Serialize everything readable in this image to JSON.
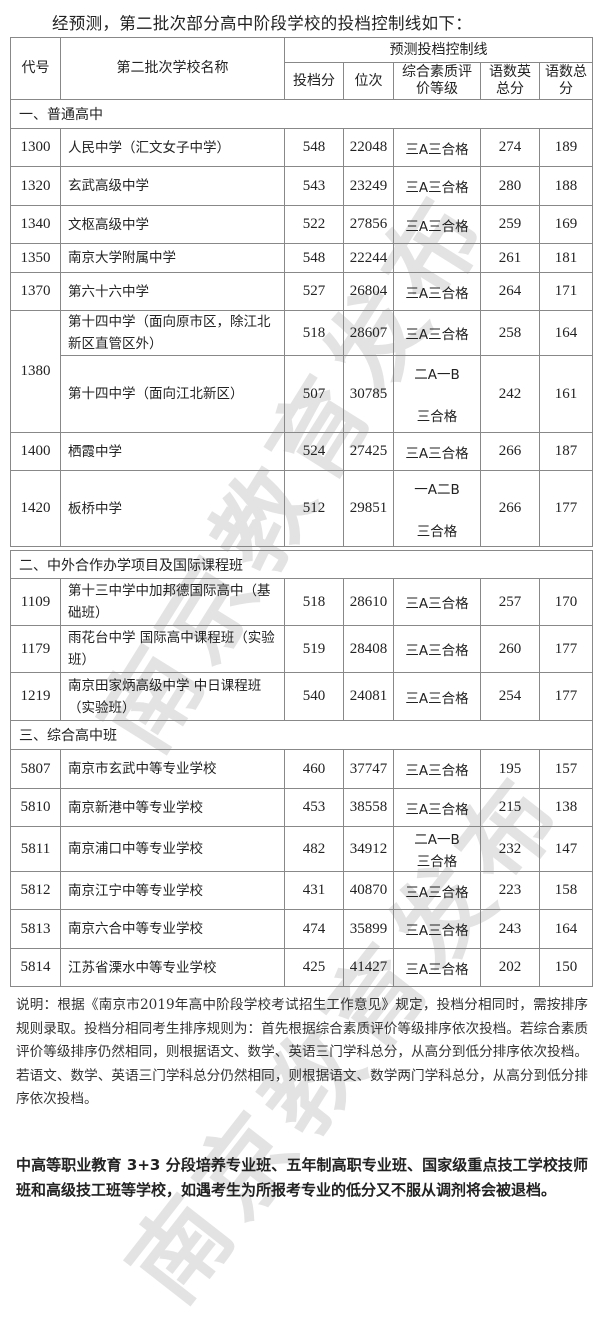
{
  "title": "经预测，第二批次部分高中阶段学校的投档控制线如下：",
  "header": {
    "code": "代号",
    "name": "第二批次学校名称",
    "group": "预测投档控制线",
    "score": "投档分",
    "rank": "位次",
    "grade": "综合素质评价等级",
    "cme_total": "语数英总分",
    "cm_total": "语数总分"
  },
  "sections": [
    {
      "label": "一、普通高中"
    },
    {
      "label": "二、中外合作办学项目及国际课程班"
    },
    {
      "label": "三、综合高中班"
    }
  ],
  "rows": [
    {
      "code": "1300",
      "name": "人民中学（汇文女子中学）",
      "score": "548",
      "rank": "22048",
      "grade": "三A三合格",
      "cme": "274",
      "cm": "189"
    },
    {
      "code": "1320",
      "name": "玄武高级中学",
      "score": "543",
      "rank": "23249",
      "grade": "三A三合格",
      "cme": "280",
      "cm": "188"
    },
    {
      "code": "1340",
      "name": "文枢高级中学",
      "score": "522",
      "rank": "27856",
      "grade": "三A三合格",
      "cme": "259",
      "cm": "169"
    },
    {
      "code": "1350",
      "name": "南京大学附属中学",
      "score": "548",
      "rank": "22244",
      "grade": "",
      "cme": "261",
      "cm": "181"
    },
    {
      "code": "1370",
      "name": "第六十六中学",
      "score": "527",
      "rank": "26804",
      "grade": "三A三合格",
      "cme": "264",
      "cm": "171"
    },
    {
      "code": "1380",
      "name": "第十四中学（面向原市区，除江北新区直管区外）",
      "score": "518",
      "rank": "28607",
      "grade": "三A三合格",
      "cme": "258",
      "cm": "164"
    },
    {
      "code": "",
      "name": "第十四中学（面向江北新区）",
      "score": "507",
      "rank": "30785",
      "grade": "二A一B 三合格",
      "cme": "242",
      "cm": "161"
    },
    {
      "code": "1400",
      "name": "栖霞中学",
      "score": "524",
      "rank": "27425",
      "grade": "三A三合格",
      "cme": "266",
      "cm": "187"
    },
    {
      "code": "1420",
      "name": "板桥中学",
      "score": "512",
      "rank": "29851",
      "grade": "一A二B 三合格",
      "cme": "266",
      "cm": "177"
    },
    {
      "code": "1109",
      "name": "第十三中学中加邦德国际高中（基础班）",
      "score": "518",
      "rank": "28610",
      "grade": "三A三合格",
      "cme": "257",
      "cm": "170"
    },
    {
      "code": "1179",
      "name": "雨花台中学 国际高中课程班（实验班）",
      "score": "519",
      "rank": "28408",
      "grade": "三A三合格",
      "cme": "260",
      "cm": "177"
    },
    {
      "code": "1219",
      "name": "南京田家炳高级中学 中日课程班（实验班）",
      "score": "540",
      "rank": "24081",
      "grade": "三A三合格",
      "cme": "254",
      "cm": "177"
    },
    {
      "code": "5807",
      "name": "南京市玄武中等专业学校",
      "score": "460",
      "rank": "37747",
      "grade": "三A三合格",
      "cme": "195",
      "cm": "157"
    },
    {
      "code": "5810",
      "name": "南京新港中等专业学校",
      "score": "453",
      "rank": "38558",
      "grade": "三A三合格",
      "cme": "215",
      "cm": "138"
    },
    {
      "code": "5811",
      "name": "南京浦口中等专业学校",
      "score": "482",
      "rank": "34912",
      "grade": "二A一B 三合格",
      "cme": "232",
      "cm": "147"
    },
    {
      "code": "5812",
      "name": "南京江宁中等专业学校",
      "score": "431",
      "rank": "40870",
      "grade": "三A三合格",
      "cme": "223",
      "cm": "158"
    },
    {
      "code": "5813",
      "name": "南京六合中等专业学校",
      "score": "474",
      "rank": "35899",
      "grade": "三A三合格",
      "cme": "243",
      "cm": "164"
    },
    {
      "code": "5814",
      "name": "江苏省溧水中等专业学校",
      "score": "425",
      "rank": "41427",
      "grade": "三A三合格",
      "cme": "202",
      "cm": "150"
    }
  ],
  "note": "说明：根据《南京市2019年高中阶段学校考试招生工作意见》规定，投档分相同时，需按排序规则录取。投档分相同考生排序规则为：首先根据综合素质评价等级排序依次投档。若综合素质评价等级排序仍然相同，则根据语文、数学、英语三门学科总分，从高分到低分排序依次投档。若语文、数学、英语三门学科总分仍然相同，则根据语文、数学两门学科总分，从高分到低分排序依次投档。",
  "note2": "中高等职业教育 3+3 分段培养专业班、五年制高职专业班、国家级重点技工学校技师班和高级技工班等学校，如遇考生为所报考专业的低分又不服从调剂将会被退档。",
  "watermark": "南京教育发布"
}
